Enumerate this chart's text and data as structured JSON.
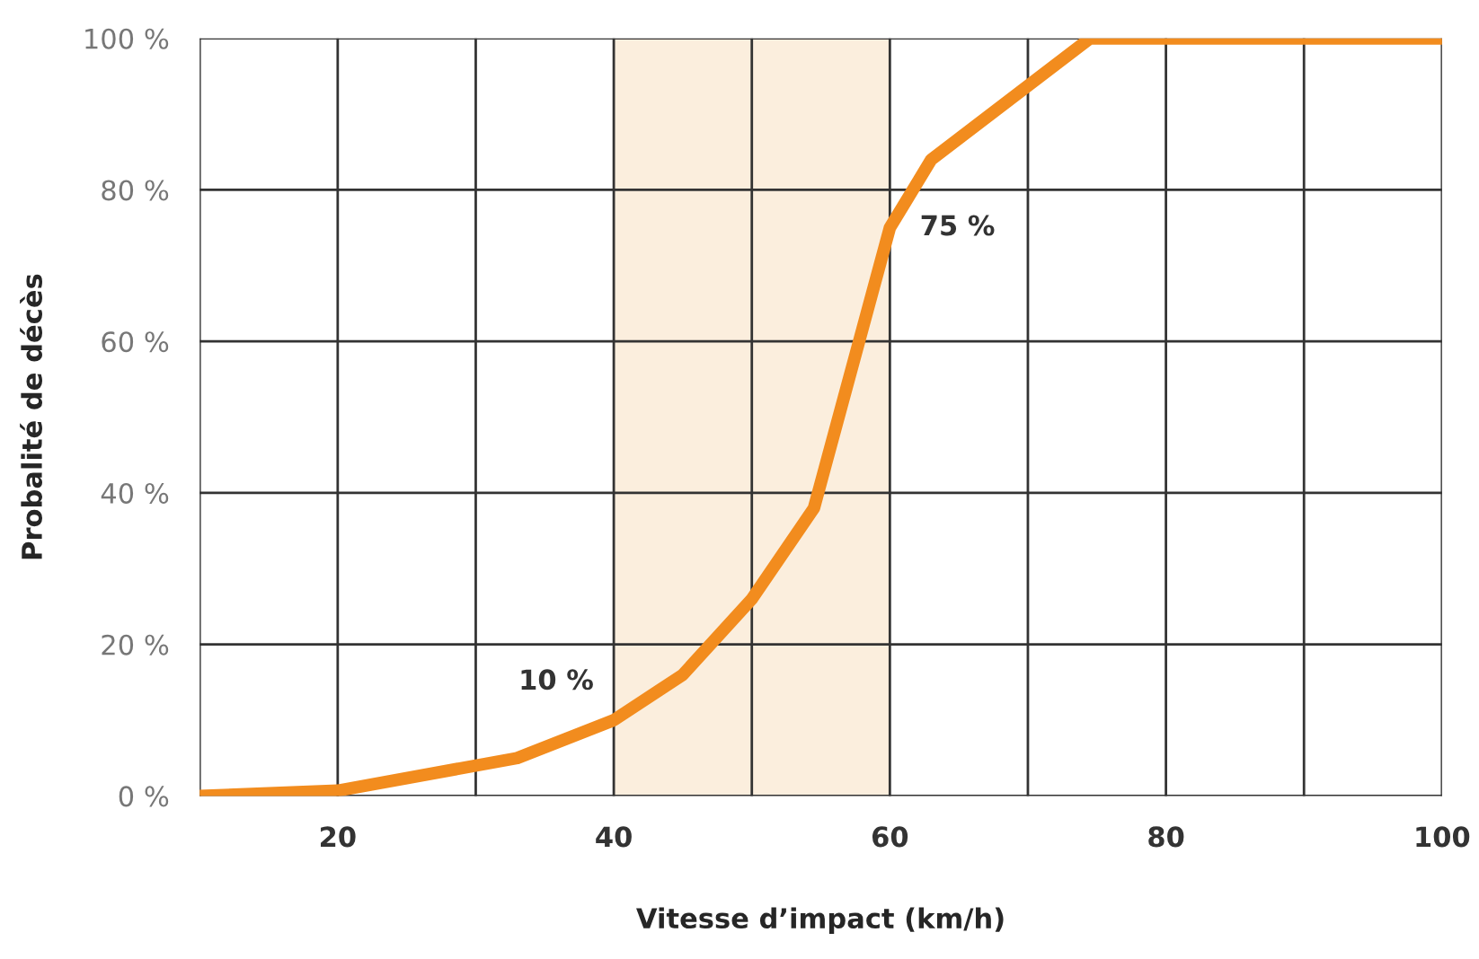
{
  "chart_data": {
    "type": "line",
    "xlabel": "Vitesse d’impact (km/h)",
    "ylabel": "Probalité de décès",
    "x": [
      10,
      20,
      33,
      40,
      45,
      50,
      54.5,
      60,
      63,
      74.5,
      100
    ],
    "series": [
      {
        "color": "#f28c1e",
        "values": [
          0,
          0.7,
          5,
          10,
          16,
          26,
          38,
          75,
          84,
          100,
          100
        ]
      }
    ],
    "xlim": [
      10,
      100
    ],
    "xticks": [
      {
        "value": 10,
        "label": null
      },
      20,
      {
        "value": 30,
        "label": null
      },
      40,
      {
        "value": 50,
        "label": null
      },
      60,
      {
        "value": 70,
        "label": null
      },
      80,
      {
        "value": 90,
        "label": null
      },
      100
    ],
    "ylim": [
      0,
      100
    ],
    "yticks": [
      {
        "value": 0,
        "label": "0 %"
      },
      {
        "value": 20,
        "label": "20 %"
      },
      {
        "value": 40,
        "label": "40 %"
      },
      {
        "value": 60,
        "label": "60 %"
      },
      {
        "value": 80,
        "label": "80 %"
      },
      {
        "value": 100,
        "label": "100 %"
      }
    ],
    "grid": true,
    "marker": "none",
    "line_style": "solid",
    "bands": [
      {
        "axis": "x",
        "from": 40,
        "to": 60,
        "color": "#fbeedd"
      }
    ],
    "annotations": [
      {
        "text": "10 %",
        "x": 40,
        "y": 10
      },
      {
        "text": "75 %",
        "x": 60,
        "y": 75
      }
    ]
  }
}
